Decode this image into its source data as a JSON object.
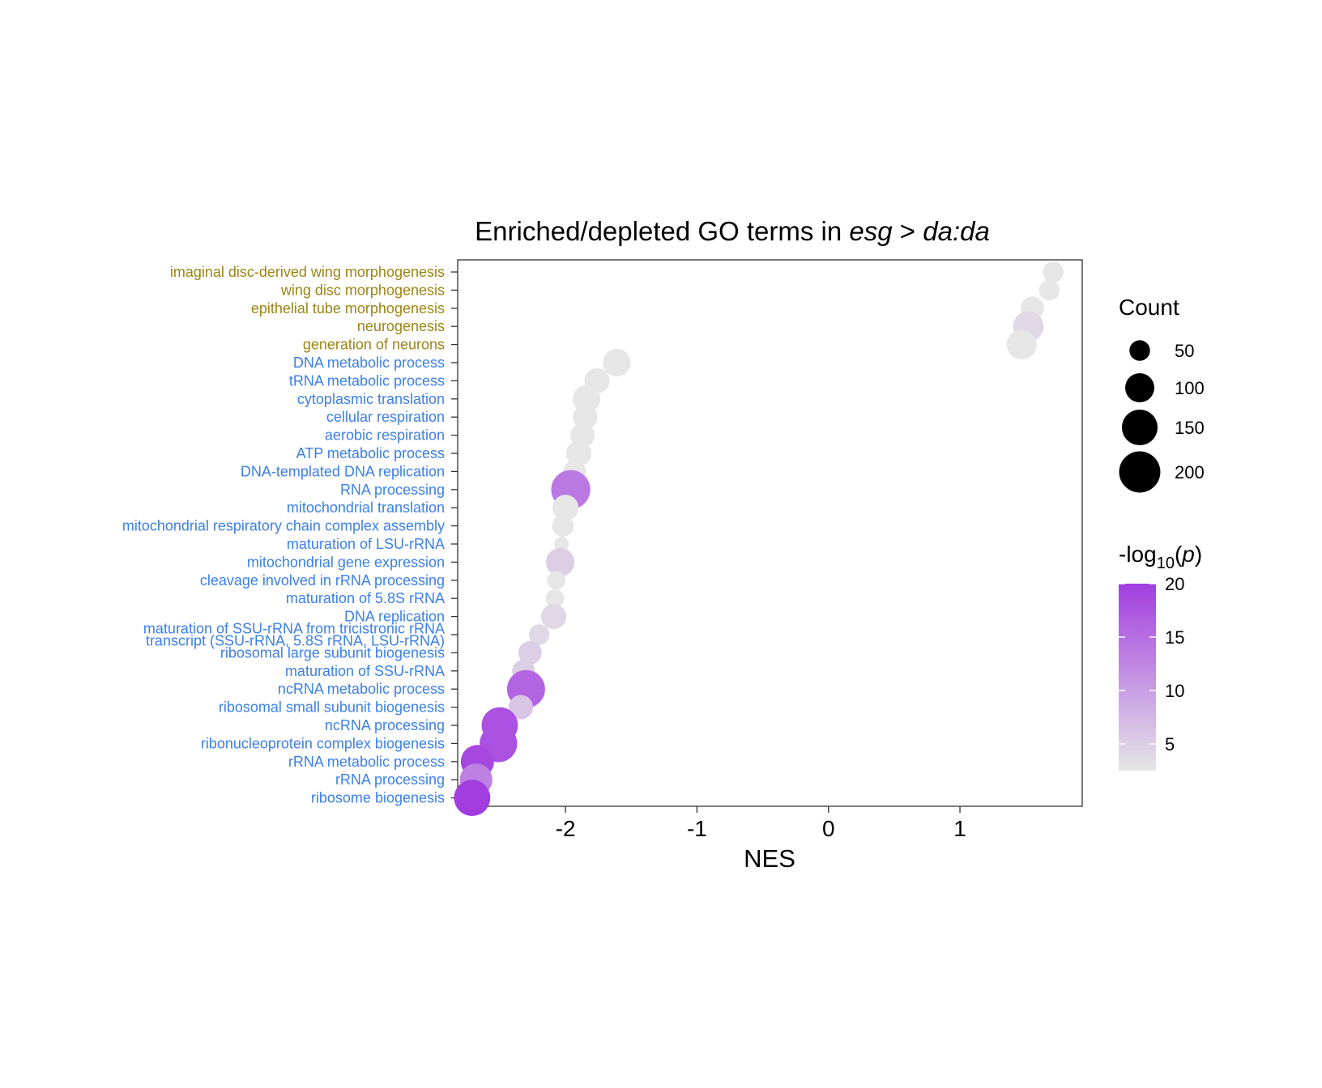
{
  "chart_data": {
    "type": "scatter",
    "title": {
      "prefix": "Enriched/depleted GO terms in ",
      "italic_1": "esg",
      "middle": " > ",
      "italic_2": "da:da"
    },
    "xlabel": "NES",
    "ylabel": "",
    "xlim": [
      -2.82,
      1.93
    ],
    "x_ticks": [
      "-2",
      "-1",
      "0",
      "1"
    ],
    "x_tick_values": [
      -2,
      -1,
      0,
      1
    ],
    "grid": false,
    "legend_placement": "right",
    "colors": {
      "enriched_label": "#9b8414",
      "depleted_label": "#3b7fe8",
      "low": "#e6e6e6",
      "high": "#a23ee0"
    },
    "terms": [
      {
        "label": "imaginal disc-derived wing morphogenesis",
        "group": "enriched",
        "nes": 1.71,
        "count": 50,
        "neglog10p": 2
      },
      {
        "label": "wing disc morphogenesis",
        "group": "enriched",
        "nes": 1.68,
        "count": 50,
        "neglog10p": 2
      },
      {
        "label": "epithelial tube morphogenesis",
        "group": "enriched",
        "nes": 1.55,
        "count": 65,
        "neglog10p": 2
      },
      {
        "label": "neurogenesis",
        "group": "enriched",
        "nes": 1.52,
        "count": 110,
        "neglog10p": 4
      },
      {
        "label": "generation of neurons",
        "group": "enriched",
        "nes": 1.47,
        "count": 105,
        "neglog10p": 2
      },
      {
        "label": "DNA metabolic process",
        "group": "depleted",
        "nes": -1.61,
        "count": 90,
        "neglog10p": 2
      },
      {
        "label": "tRNA metabolic process",
        "group": "depleted",
        "nes": -1.76,
        "count": 75,
        "neglog10p": 2
      },
      {
        "label": "cytoplasmic translation",
        "group": "depleted",
        "nes": -1.84,
        "count": 90,
        "neglog10p": 2
      },
      {
        "label": "cellular respiration",
        "group": "depleted",
        "nes": -1.85,
        "count": 70,
        "neglog10p": 2
      },
      {
        "label": "aerobic respiration",
        "group": "depleted",
        "nes": -1.87,
        "count": 70,
        "neglog10p": 2
      },
      {
        "label": "ATP metabolic process",
        "group": "depleted",
        "nes": -1.9,
        "count": 75,
        "neglog10p": 2
      },
      {
        "label": "DNA-templated DNA replication",
        "group": "depleted",
        "nes": -1.93,
        "count": 60,
        "neglog10p": 2
      },
      {
        "label": "RNA processing",
        "group": "depleted",
        "nes": -1.96,
        "count": 180,
        "neglog10p": 14
      },
      {
        "label": "mitochondrial translation",
        "group": "depleted",
        "nes": -2.0,
        "count": 80,
        "neglog10p": 2
      },
      {
        "label": "mitochondrial respiratory chain complex assembly",
        "group": "depleted",
        "nes": -2.02,
        "count": 55,
        "neglog10p": 2
      },
      {
        "label": "maturation of LSU-rRNA",
        "group": "depleted",
        "nes": -2.03,
        "count": 25,
        "neglog10p": 2
      },
      {
        "label": "mitochondrial gene expression",
        "group": "depleted",
        "nes": -2.04,
        "count": 95,
        "neglog10p": 5
      },
      {
        "label": "cleavage involved in rRNA processing",
        "group": "depleted",
        "nes": -2.07,
        "count": 40,
        "neglog10p": 2
      },
      {
        "label": "maturation of 5.8S rRNA",
        "group": "depleted",
        "nes": -2.08,
        "count": 40,
        "neglog10p": 2
      },
      {
        "label": "DNA replication",
        "group": "depleted",
        "nes": -2.09,
        "count": 75,
        "neglog10p": 4
      },
      {
        "label": "maturation of SSU-rRNA from tricistronic rRNA transcript (SSU-rRNA, 5.8S rRNA, LSU-rRNA)",
        "label_lines": [
          "maturation of SSU-rRNA from tricistronic rRNA",
          "transcript (SSU-rRNA, 5.8S rRNA, LSU-rRNA)"
        ],
        "group": "depleted",
        "nes": -2.2,
        "count": 50,
        "neglog10p": 4
      },
      {
        "label": "ribosomal large subunit biogenesis",
        "group": "depleted",
        "nes": -2.27,
        "count": 65,
        "neglog10p": 5
      },
      {
        "label": "maturation of SSU-rRNA",
        "group": "depleted",
        "nes": -2.32,
        "count": 60,
        "neglog10p": 5
      },
      {
        "label": "ncRNA metabolic process",
        "group": "depleted",
        "nes": -2.3,
        "count": 170,
        "neglog10p": 16
      },
      {
        "label": "ribosomal small subunit biogenesis",
        "group": "depleted",
        "nes": -2.34,
        "count": 70,
        "neglog10p": 6
      },
      {
        "label": "ncRNA processing",
        "group": "depleted",
        "nes": -2.5,
        "count": 155,
        "neglog10p": 18
      },
      {
        "label": "ribonucleoprotein complex biogenesis",
        "group": "depleted",
        "nes": -2.51,
        "count": 165,
        "neglog10p": 18
      },
      {
        "label": "rRNA metabolic process",
        "group": "depleted",
        "nes": -2.67,
        "count": 130,
        "neglog10p": 19
      },
      {
        "label": "rRNA processing",
        "group": "depleted",
        "nes": -2.68,
        "count": 125,
        "neglog10p": 13
      },
      {
        "label": "ribosome biogenesis",
        "group": "depleted",
        "nes": -2.71,
        "count": 155,
        "neglog10p": 20
      }
    ],
    "legend_size": {
      "title": "Count",
      "entries": [
        {
          "label": "50",
          "value": 50
        },
        {
          "label": "100",
          "value": 100
        },
        {
          "label": "150",
          "value": 150
        },
        {
          "label": "200",
          "value": 200
        }
      ]
    },
    "legend_color": {
      "title_prefix": "-log",
      "title_sub": "10",
      "title_open": "(",
      "title_var": "p",
      "title_close": ")",
      "range": [
        2.5,
        20
      ],
      "ticks": [
        {
          "label": "20",
          "value": 20
        },
        {
          "label": "15",
          "value": 15
        },
        {
          "label": "10",
          "value": 10
        },
        {
          "label": "5",
          "value": 5
        }
      ]
    }
  }
}
